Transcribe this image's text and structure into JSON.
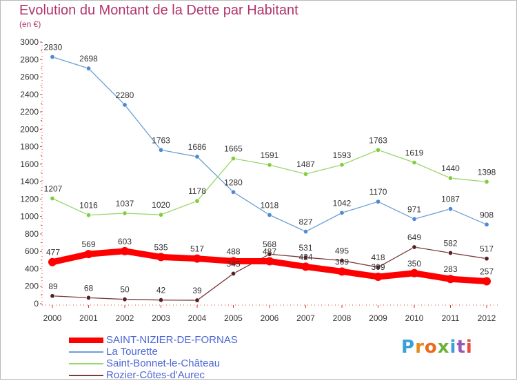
{
  "title": "Evolution du Montant de la Dette par Habitant",
  "unit_label": "(en €)",
  "logo": {
    "text": "Proxiti",
    "letter_colors": [
      "#3aa0d8",
      "#e58a1f",
      "#ee6a1a",
      "#6bb13a",
      "#3aa0d8",
      "#9b59b6",
      "#e74c3c"
    ]
  },
  "chart_data": {
    "type": "line",
    "x": [
      2000,
      2001,
      2002,
      2003,
      2004,
      2005,
      2006,
      2007,
      2008,
      2009,
      2010,
      2011,
      2012
    ],
    "ylim": [
      0,
      3000
    ],
    "yticks": [
      0,
      200,
      400,
      600,
      800,
      1000,
      1200,
      1400,
      1600,
      1800,
      2000,
      2200,
      2400,
      2600,
      2800,
      3000
    ],
    "grid": false,
    "legend_position": "bottom-left",
    "series": [
      {
        "name": "SAINT-NIZIER-DE-FORNAS",
        "color": "#ff0000",
        "emphasis": true,
        "values": [
          477,
          569,
          603,
          535,
          517,
          488,
          487,
          424,
          369,
          309,
          350,
          283,
          257
        ]
      },
      {
        "name": "La Tourette",
        "color": "#6a9fd4",
        "marker": "#4f88d6",
        "emphasis": false,
        "values": [
          2830,
          2698,
          2280,
          1763,
          1686,
          1280,
          1018,
          827,
          1042,
          1170,
          971,
          1087,
          908
        ]
      },
      {
        "name": "Saint-Bonnet-le-Château",
        "color": "#98d56a",
        "marker": "#84cc3f",
        "emphasis": false,
        "values": [
          1207,
          1016,
          1037,
          1020,
          1178,
          1665,
          1591,
          1487,
          1593,
          1763,
          1619,
          1440,
          1398
        ]
      },
      {
        "name": "Rozier-Côtes-d'Aurec",
        "color": "#7a3b3b",
        "marker": "#5a1e1e",
        "emphasis": false,
        "values": [
          89,
          68,
          50,
          42,
          39,
          345,
          568,
          531,
          495,
          418,
          649,
          582,
          517
        ]
      }
    ]
  }
}
